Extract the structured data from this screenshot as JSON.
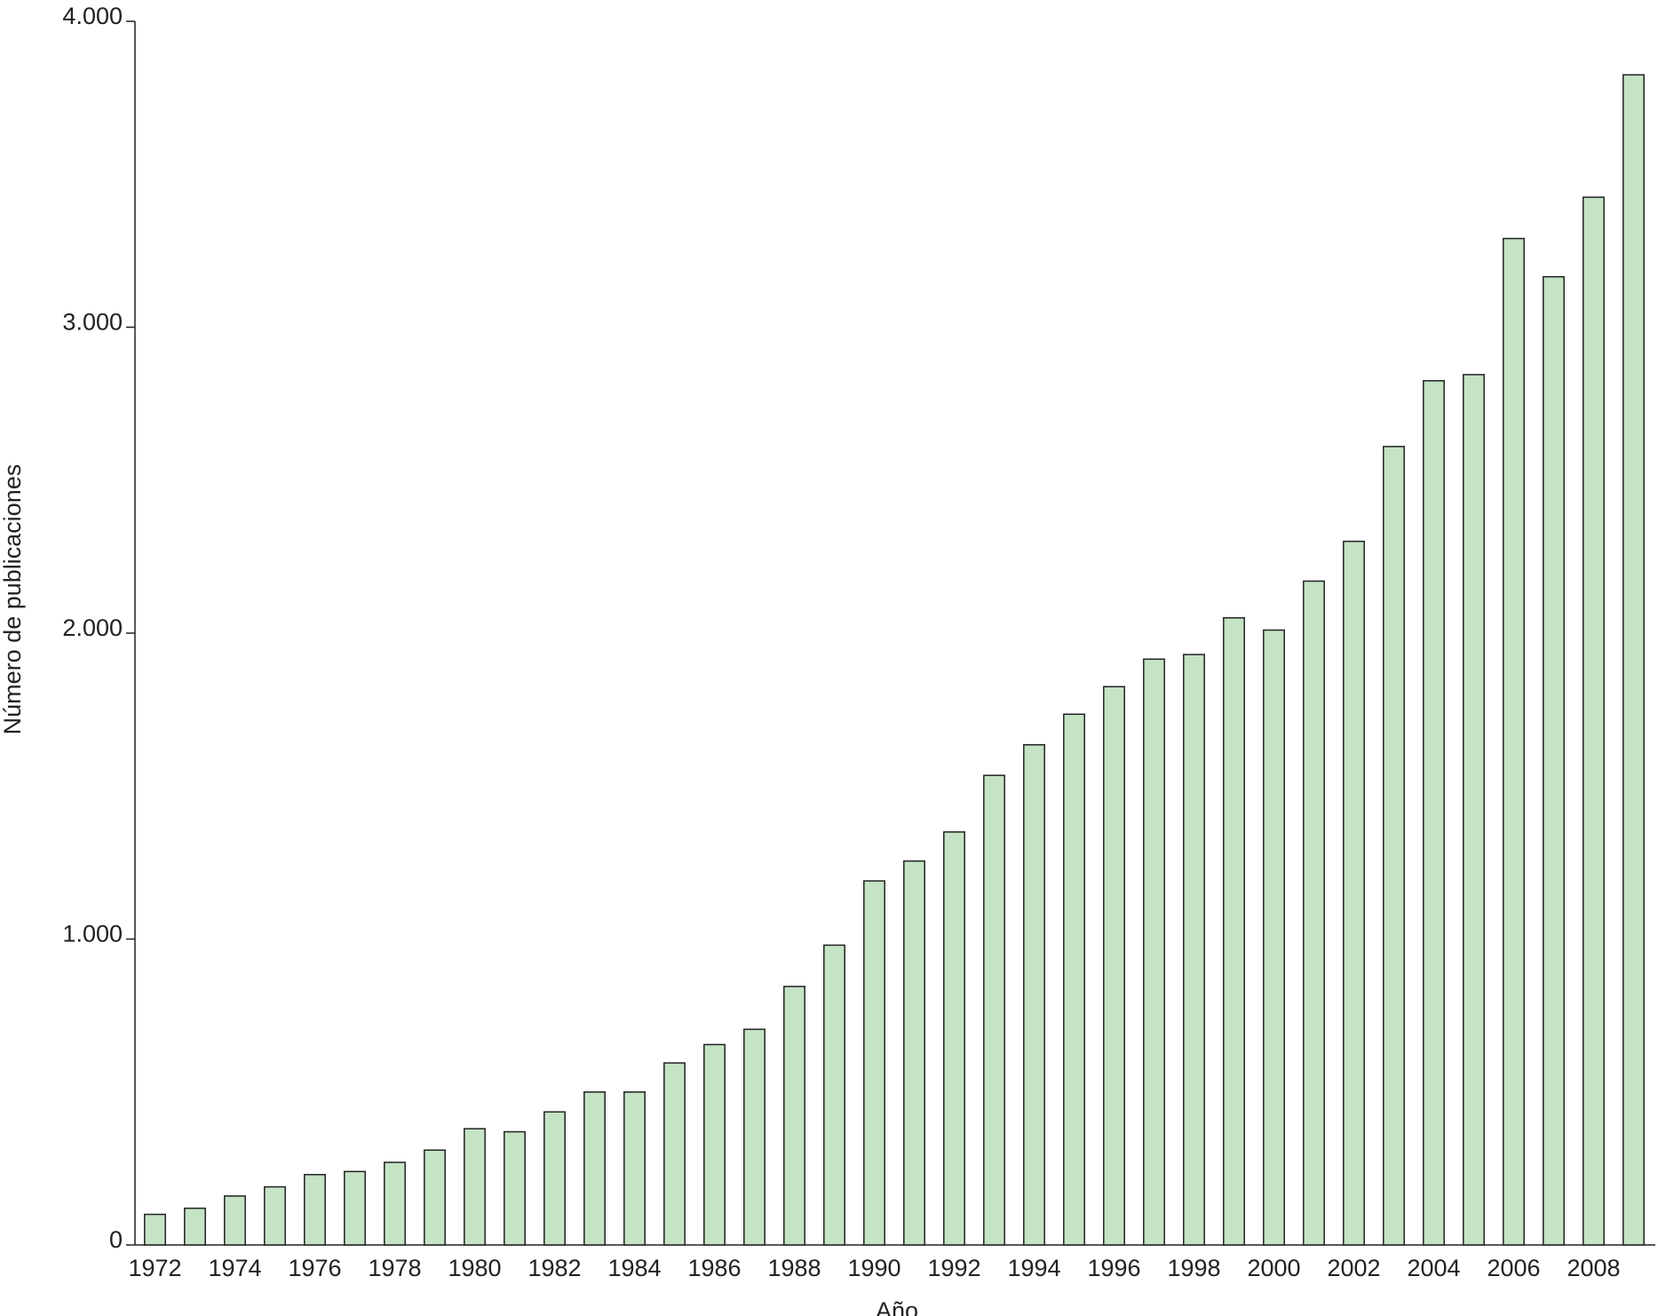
{
  "chart_data": {
    "type": "bar",
    "x_label": "Año",
    "y_label": "Número de publicaciones",
    "categories": [
      "1972",
      null,
      "1974",
      null,
      "1976",
      null,
      "1978",
      null,
      "1980",
      null,
      "1982",
      null,
      "1984",
      null,
      "1986",
      null,
      "1988",
      null,
      "1990",
      null,
      "1992",
      null,
      "1994",
      null,
      "1996",
      null,
      "1998",
      null,
      "2000",
      null,
      "2002",
      null,
      "2004",
      null,
      "2006",
      null,
      "2008",
      null
    ],
    "values": [
      100,
      120,
      160,
      190,
      230,
      240,
      270,
      310,
      380,
      370,
      435,
      500,
      500,
      595,
      655,
      705,
      845,
      980,
      1190,
      1255,
      1350,
      1535,
      1635,
      1735,
      1825,
      1915,
      1930,
      2050,
      2010,
      2170,
      2300,
      2610,
      2825,
      2845,
      3290,
      3165,
      3425,
      3825
    ],
    "color": "#c5e3c5",
    "ylim": [
      0,
      4000
    ],
    "yticks": [
      0,
      {
        "value": 1000,
        "label": "1.000"
      },
      {
        "value": 2000,
        "label": "2.000"
      },
      {
        "value": 3000,
        "label": "3.000"
      },
      {
        "value": 4000,
        "label": "4.000"
      }
    ],
    "grid": false
  }
}
